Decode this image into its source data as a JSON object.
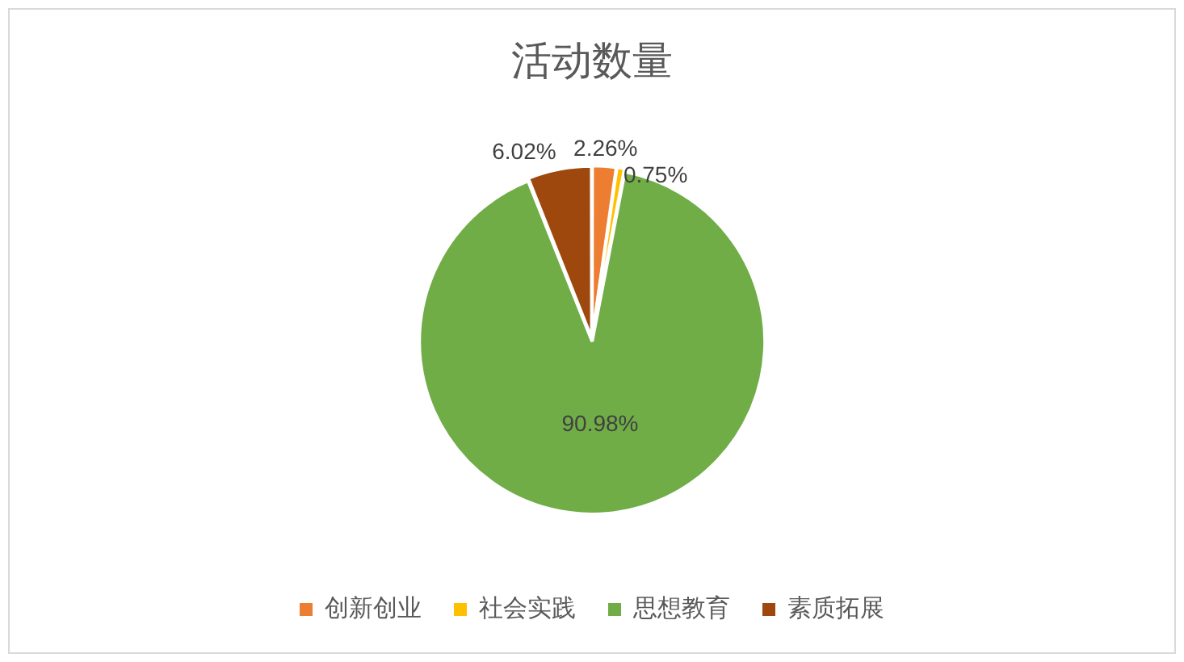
{
  "chart_data": {
    "type": "pie",
    "title": "活动数量",
    "categories": [
      "创新创业",
      "社会实践",
      "思想教育",
      "素质拓展"
    ],
    "values": [
      2.26,
      0.75,
      90.98,
      6.02
    ],
    "colors": [
      "#ed7d31",
      "#ffc000",
      "#70ad47",
      "#9e480e"
    ],
    "value_labels": [
      "2.26%",
      "0.75%",
      "90.98%",
      "6.02%"
    ],
    "legend": "bottom"
  }
}
